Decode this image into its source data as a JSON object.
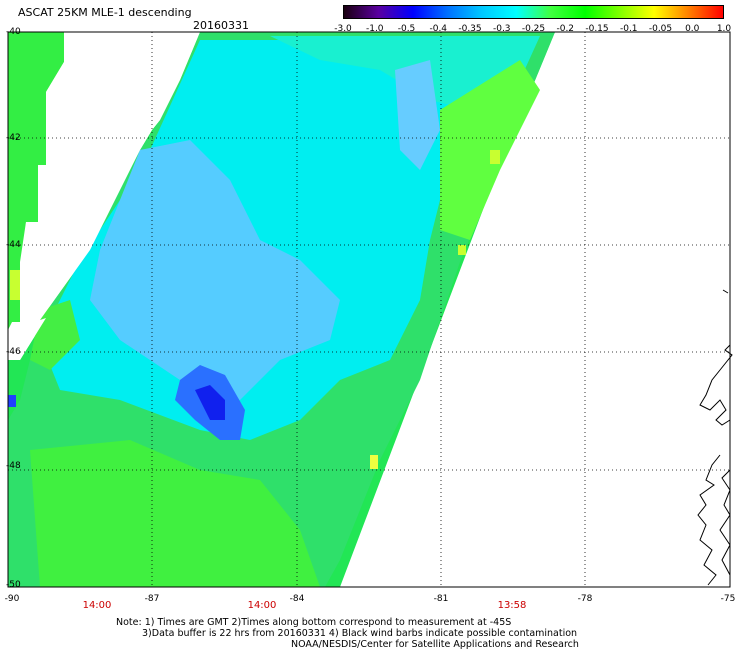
{
  "title": "ASCAT 25KM MLE-1 descending",
  "date": "20160331",
  "colorbar": {
    "ticks": [
      "-3.0",
      "-1.0",
      "-0.5",
      "-0.4",
      "-0.35",
      "-0.3",
      "-0.25",
      "-0.2",
      "-0.15",
      "-0.1",
      "-0.05",
      "0.0",
      "1.0"
    ],
    "colors": [
      "#1a0010",
      "#5a00a0",
      "#0000ff",
      "#0070ff",
      "#00c8ff",
      "#00ffff",
      "#40ff40",
      "#00ff00",
      "#80ff00",
      "#ffff00",
      "#ff8000",
      "#ff0000"
    ]
  },
  "lat_labels": [
    "-40",
    "-42",
    "-44",
    "-46",
    "-48",
    "-50"
  ],
  "lon_labels": [
    "-90",
    "-87",
    "-84",
    "-81",
    "-78",
    "-75"
  ],
  "times": [
    "14:00",
    "14:00",
    "13:58"
  ],
  "notes": {
    "line1": "Note: 1) Times are GMT 2)Times along bottom correspond to measurement at -45S",
    "line2": "3)Data buffer is 22 hrs from 20160331 4) Black wind barbs indicate possible contamination",
    "line3": "NOAA/NESDIS/Center for Satellite Applications and Research"
  }
}
